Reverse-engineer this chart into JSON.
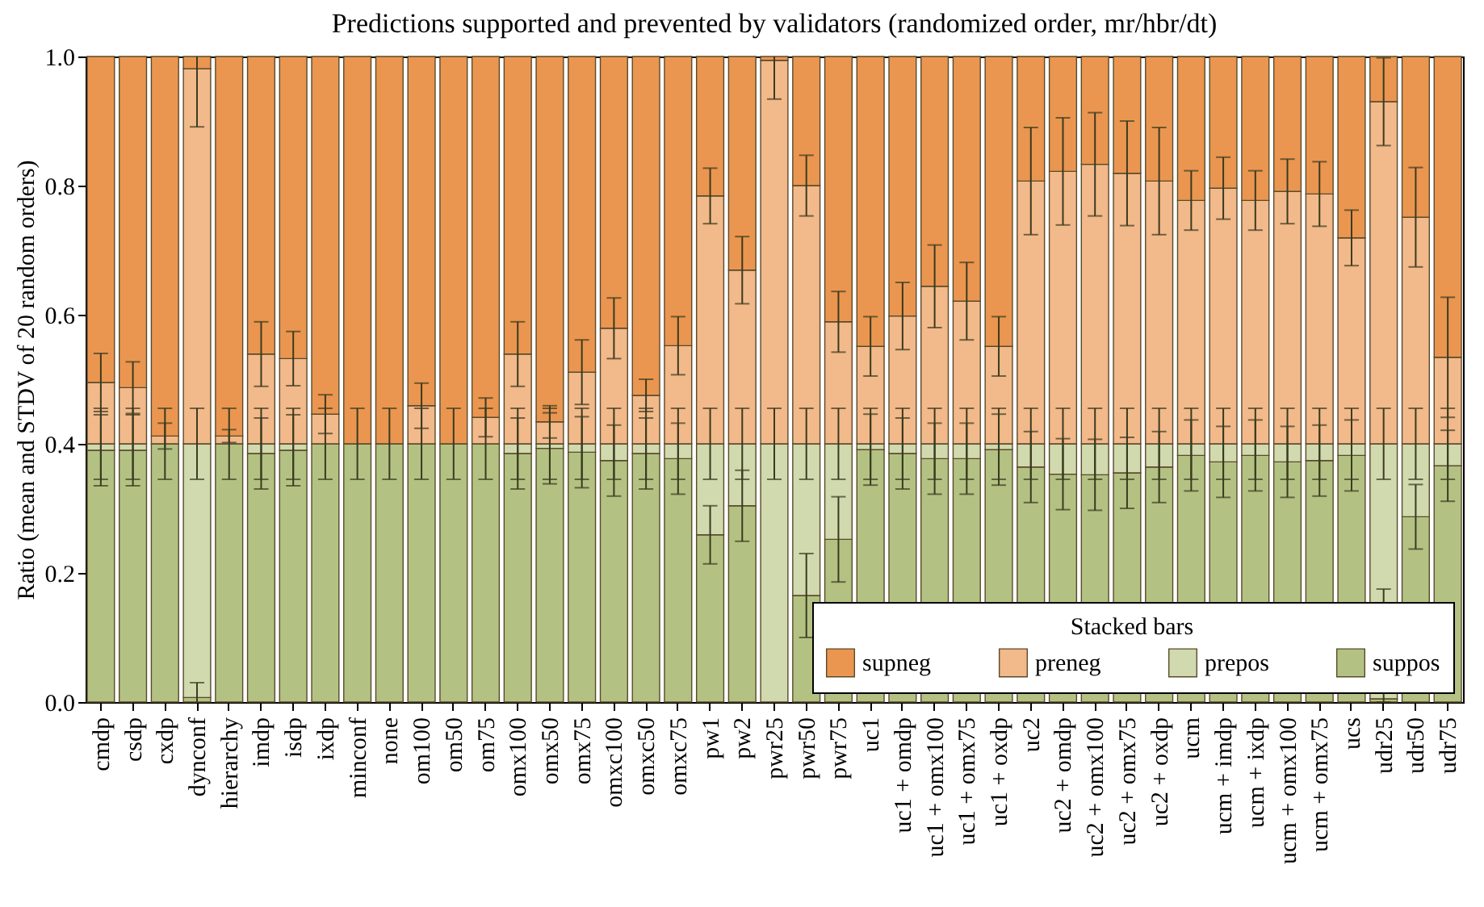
{
  "chart_data": {
    "type": "bar",
    "stacked": true,
    "title": "Predictions supported and prevented by validators (randomized order, mr/hbr/dt)",
    "ylabel": "Ratio (mean and STDV of 20 random orders)",
    "legend_title": "Stacked bars",
    "legend": "bottom right",
    "grid": false,
    "categories": [
      "cmdp",
      "csdp",
      "cxdp",
      "dynconf",
      "hierarchy",
      "imdp",
      "isdp",
      "ixdp",
      "minconf",
      "none",
      "om100",
      "om50",
      "om75",
      "omx100",
      "omx50",
      "omx75",
      "omxc100",
      "omxc50",
      "omxc75",
      "pw1",
      "pw2",
      "pwr25",
      "pwr50",
      "pwr75",
      "uc1",
      "uc1 + omdp",
      "uc1 + omx100",
      "uc1 + omx75",
      "uc1 + oxdp",
      "uc2",
      "uc2 + omdp",
      "uc2 + omx100",
      "uc2 + omx75",
      "uc2 + oxdp",
      "ucm",
      "ucm + imdp",
      "ucm + ixdp",
      "ucm + omx100",
      "ucm + omx75",
      "ucs",
      "udr25",
      "udr50",
      "udr75"
    ],
    "ylim": [
      0,
      1
    ],
    "yticks": [
      {
        "value": 0,
        "label": "0.0"
      },
      {
        "value": 0.2,
        "label": "0.2"
      },
      {
        "value": 0.4,
        "label": "0.4"
      },
      {
        "value": 0.6,
        "label": "0.6"
      },
      {
        "value": 0.8,
        "label": "0.8"
      },
      {
        "value": 1,
        "label": "1.0"
      }
    ],
    "series": [
      {
        "name": "suppos",
        "color": "#b3c283",
        "values": [
          0.39,
          0.39,
          0.4,
          0.007,
          0.4,
          0.385,
          0.39,
          0.4,
          0.4,
          0.4,
          0.4,
          0.4,
          0.4,
          0.385,
          0.393,
          0.387,
          0.374,
          0.385,
          0.377,
          0.259,
          0.304,
          null,
          0.165,
          0.252,
          0.391,
          0.385,
          0.377,
          0.377,
          0.391,
          0.364,
          0.353,
          0.352,
          0.355,
          0.364,
          0.382,
          0.372,
          0.382,
          0.372,
          0.374,
          0.382,
          0.005,
          0.287,
          0.366
        ],
        "errors": [
          0.055,
          0.055,
          0.055,
          0.023,
          0.055,
          0.055,
          0.055,
          0.055,
          0.055,
          0.055,
          0.055,
          0.055,
          0.055,
          0.055,
          0.055,
          0.055,
          0.055,
          0.055,
          0.055,
          0.045,
          0.055,
          null,
          0.065,
          0.066,
          0.055,
          0.055,
          0.055,
          0.055,
          0.055,
          0.055,
          0.055,
          0.055,
          0.055,
          0.055,
          0.055,
          0.055,
          0.055,
          0.055,
          0.055,
          0.055,
          [
            0,
            0.175
          ],
          0.05,
          0.055
        ]
      },
      {
        "name": "prepos",
        "color": "#d1d9ae",
        "values": [
          0.01,
          0.01,
          null,
          0.393,
          null,
          0.015,
          0.01,
          null,
          null,
          null,
          null,
          null,
          null,
          0.015,
          0.007,
          0.013,
          0.026,
          0.015,
          0.023,
          0.141,
          0.096,
          0.4,
          0.235,
          0.148,
          0.009,
          0.015,
          0.023,
          0.023,
          0.009,
          0.036,
          0.047,
          0.048,
          0.045,
          0.036,
          0.018,
          0.028,
          0.018,
          0.028,
          0.026,
          0.018,
          0.395,
          0.113,
          0.034
        ],
        "errors": [
          0.055,
          0.055,
          null,
          0.055,
          null,
          0.055,
          0.055,
          null,
          null,
          null,
          null,
          null,
          null,
          0.055,
          0.055,
          0.055,
          0.055,
          0.055,
          0.055,
          0.055,
          0.055,
          0.055,
          0.055,
          0.055,
          0.055,
          0.055,
          0.055,
          0.055,
          0.055,
          0.055,
          0.055,
          0.055,
          0.055,
          0.055,
          0.055,
          0.055,
          0.055,
          0.055,
          0.055,
          0.055,
          0.055,
          0.055,
          0.055
        ]
      },
      {
        "name": "preneg",
        "color": "#f2b98a",
        "values": [
          0.095,
          0.087,
          0.012,
          0.581,
          0.012,
          0.139,
          0.132,
          0.046,
          null,
          null,
          0.059,
          null,
          0.041,
          0.139,
          0.034,
          0.111,
          0.179,
          0.075,
          0.152,
          0.384,
          0.269,
          0.594,
          0.4,
          0.189,
          0.151,
          0.198,
          0.244,
          0.221,
          0.151,
          0.407,
          0.422,
          0.433,
          0.419,
          0.407,
          0.377,
          0.396,
          0.377,
          0.391,
          0.387,
          0.319,
          0.53,
          0.351,
          0.134
        ],
        "errors": [
          0.045,
          0.04,
          0.02,
          0.09,
          0.01,
          0.05,
          0.042,
          0.03,
          null,
          null,
          0.035,
          null,
          0.03,
          0.05,
          0.025,
          0.05,
          0.047,
          0.025,
          0.045,
          0.043,
          0.052,
          0.06,
          0.047,
          0.047,
          0.046,
          0.052,
          0.064,
          0.06,
          0.046,
          0.083,
          0.083,
          0.08,
          0.081,
          0.083,
          0.046,
          0.048,
          0.046,
          0.05,
          0.05,
          0.043,
          0.068,
          0.077,
          0.093
        ]
      },
      {
        "name": "supneg",
        "color": "#ea9650",
        "values": [
          0.505,
          0.513,
          0.588,
          0.019,
          0.588,
          0.461,
          0.468,
          0.554,
          0.6,
          0.6,
          0.541,
          0.6,
          0.559,
          0.461,
          0.566,
          0.489,
          0.421,
          0.525,
          0.448,
          0.216,
          0.331,
          0.006,
          0.2,
          0.411,
          0.449,
          0.402,
          0.356,
          0.379,
          0.449,
          0.193,
          0.178,
          0.167,
          0.181,
          0.193,
          0.223,
          0.204,
          0.223,
          0.209,
          0.213,
          0.281,
          0.07,
          0.249,
          0.466
        ]
      }
    ]
  }
}
